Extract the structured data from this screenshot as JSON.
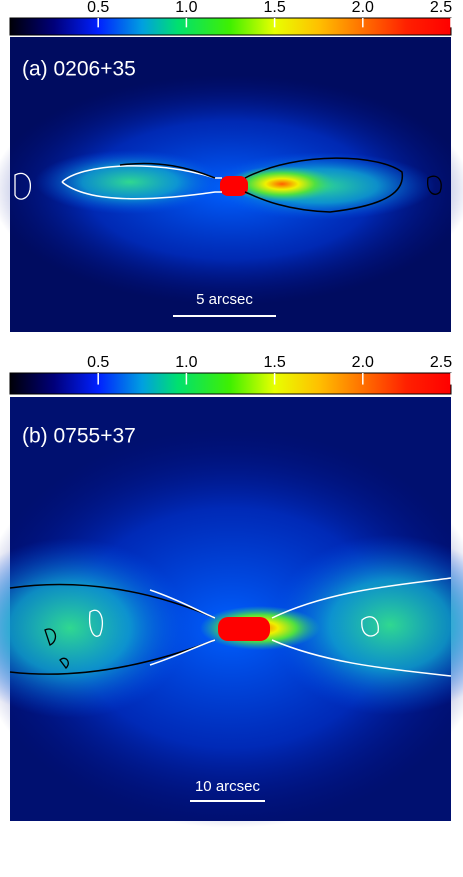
{
  "panels": [
    {
      "label": "(a) 0206+35",
      "scale_bar": "5 arcsec",
      "colorbar": {
        "range": [
          0,
          2.5
        ],
        "ticks": [
          0.5,
          {
            "value": 1,
            "label": "1.0"
          },
          1.5,
          {
            "value": 2,
            "label": "2.0"
          },
          2.5
        ]
      }
    },
    {
      "label": "(b) 0755+37",
      "scale_bar": "10 arcsec",
      "colorbar": {
        "range": [
          0,
          2.5
        ],
        "ticks": [
          0.5,
          {
            "value": 1,
            "label": "1.0"
          },
          1.5,
          {
            "value": 2,
            "label": "2.0"
          },
          2.5
        ]
      }
    }
  ]
}
